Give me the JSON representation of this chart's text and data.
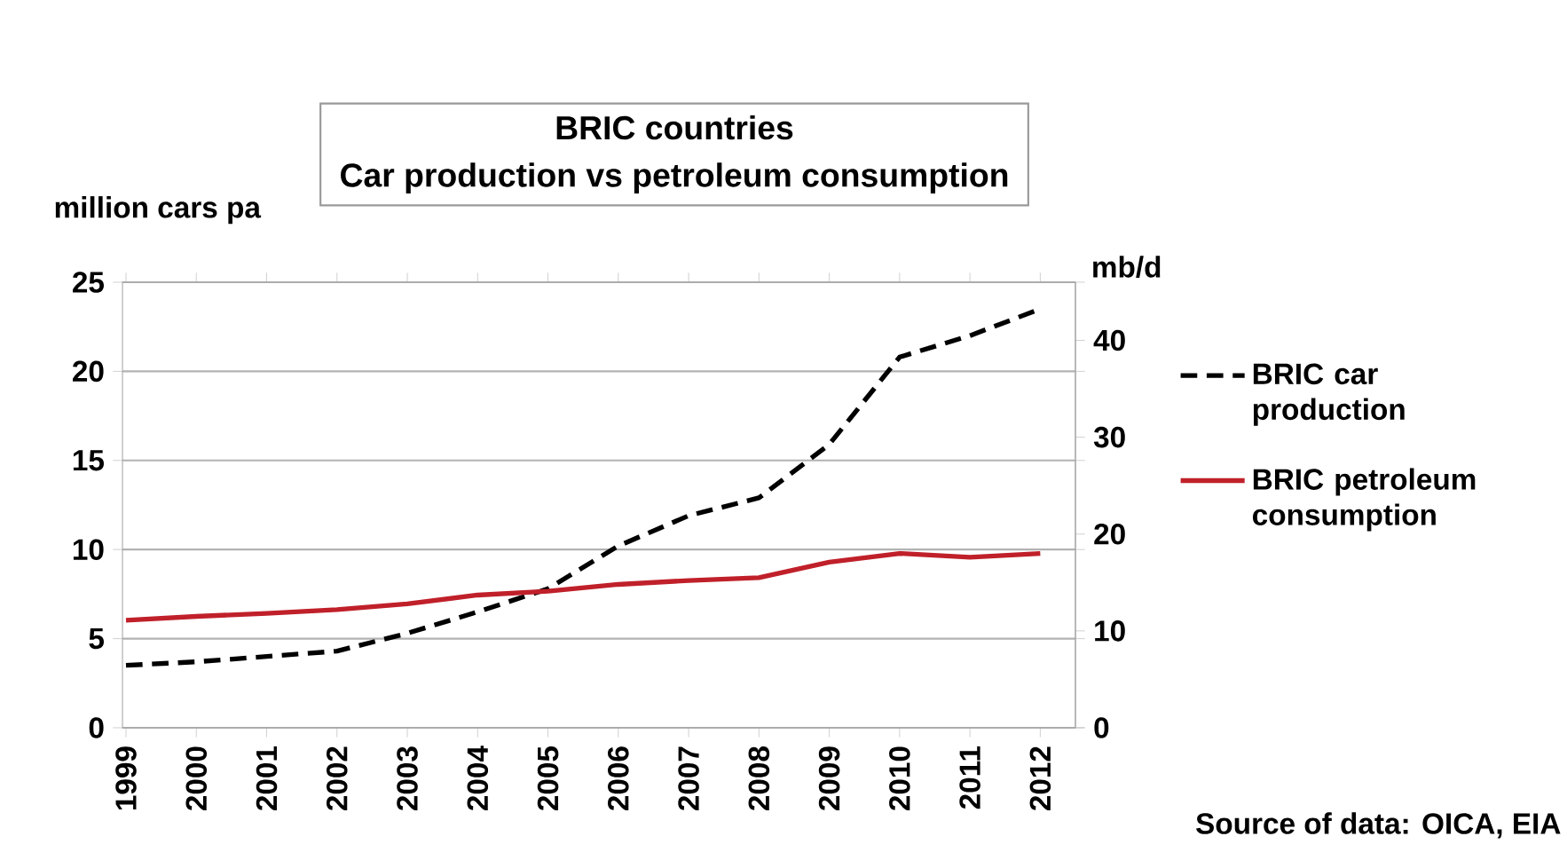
{
  "chart_data": {
    "type": "line",
    "title": "BRIC countries",
    "subtitle": "Car production vs petroleum consumption",
    "ylabel": "million cars pa",
    "y2label": "mb/d",
    "categories": [
      "1999",
      "2000",
      "2001",
      "2002",
      "2003",
      "2004",
      "2005",
      "2006",
      "2007",
      "2008",
      "2009",
      "2010",
      "2011",
      "2012"
    ],
    "series": [
      {
        "name": "BRIC car production",
        "color": "#000000",
        "line_style": "dashed",
        "values": [
          3.5,
          3.7,
          4.0,
          4.3,
          5.3,
          6.5,
          7.8,
          10.2,
          11.9,
          12.9,
          15.9,
          20.8,
          22.0,
          23.5
        ]
      },
      {
        "name": "BRIC petroleum consumption",
        "color": "#c0202a",
        "line_style": "solid",
        "axis": "y2",
        "values": [
          11.1,
          11.5,
          11.8,
          12.2,
          12.8,
          13.7,
          14.1,
          14.8,
          15.2,
          15.5,
          17.1,
          18.0,
          17.6,
          18.0
        ]
      }
    ],
    "ylim": [
      0,
      25
    ],
    "yticks": [
      0,
      5,
      10,
      15,
      20,
      25
    ],
    "y2lim": [
      0,
      46
    ],
    "y2ticks": [
      0,
      10,
      20,
      30,
      40
    ],
    "grid": "y",
    "legend": "right",
    "marker": "none",
    "annotations": [
      "Source of data: OICA, EIA"
    ]
  }
}
